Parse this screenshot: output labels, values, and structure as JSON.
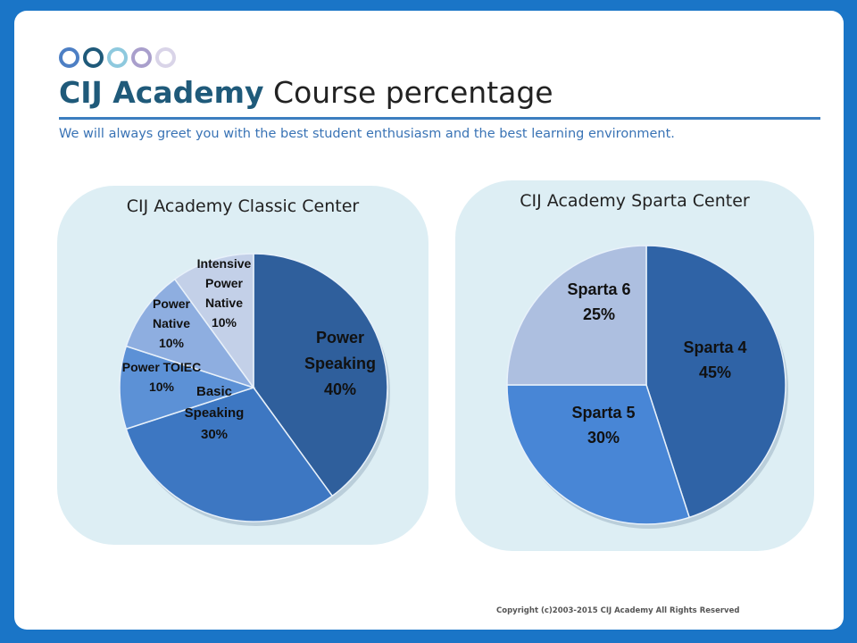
{
  "slide": {
    "brand": "CIJ Academy",
    "title_rest": " Course percentage",
    "subtitle": "We will always greet you with the best student enthusiasm and the best learning environment.",
    "copyright": "Copyright (c)2003-2015 CIJ Academy All Rights Reserved",
    "dot_colors": [
      "#4d7fc4",
      "#1f5a7a",
      "#8ec9de",
      "#a99fcc",
      "#d9d4e8"
    ]
  },
  "chart_data": [
    {
      "type": "pie",
      "title": "CIJ Academy Classic Center",
      "slices": [
        {
          "label_lines": [
            "Power",
            "Speaking",
            "40%"
          ],
          "value": 40,
          "color": "#2f5f9c"
        },
        {
          "label_lines": [
            "Basic",
            "Speaking",
            "30%"
          ],
          "value": 30,
          "color": "#3d77c2"
        },
        {
          "label_lines": [
            "Power  TOIEC",
            "10%"
          ],
          "value": 10,
          "color": "#5c91d6"
        },
        {
          "label_lines": [
            "Power",
            "Native",
            "10%"
          ],
          "value": 10,
          "color": "#8eaee0"
        },
        {
          "label_lines": [
            "Intensive",
            "Power",
            "Native",
            "10%"
          ],
          "value": 10,
          "color": "#c3d0e8"
        }
      ]
    },
    {
      "type": "pie",
      "title": "CIJ Academy Sparta Center",
      "slices": [
        {
          "label_lines": [
            "Sparta 4",
            "45%"
          ],
          "value": 45,
          "color": "#2f63a6"
        },
        {
          "label_lines": [
            "Sparta 5",
            "30%"
          ],
          "value": 30,
          "color": "#4886d6"
        },
        {
          "label_lines": [
            "Sparta 6",
            "25%"
          ],
          "value": 25,
          "color": "#adbfe0"
        }
      ]
    }
  ]
}
